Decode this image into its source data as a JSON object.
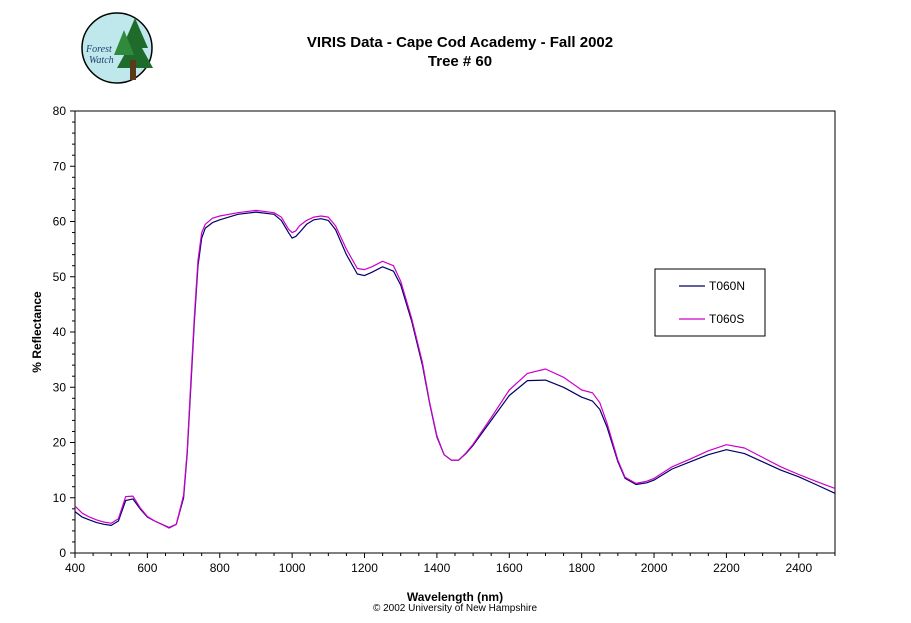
{
  "logo": {
    "line1": "Forest",
    "line2": "Watch"
  },
  "footer": "© 2002 University of New Hampshire",
  "chart_data": {
    "type": "line",
    "title": "VIRIS Data - Cape Cod Academy - Fall 2002",
    "subtitle": "Tree # 60",
    "xlabel": "Wavelength (nm)",
    "ylabel": "% Reflectance",
    "xlim": [
      400,
      2500
    ],
    "ylim": [
      0,
      80
    ],
    "xticks": [
      400,
      600,
      800,
      1000,
      1200,
      1400,
      1600,
      1800,
      2000,
      2200,
      2400
    ],
    "yticks": [
      0,
      10,
      20,
      30,
      40,
      50,
      60,
      70,
      80
    ],
    "grid": false,
    "legend_position": "right",
    "series": [
      {
        "name": "T060N",
        "color": "#000066",
        "x": [
          400,
          420,
          440,
          460,
          480,
          500,
          520,
          540,
          560,
          580,
          600,
          620,
          640,
          660,
          680,
          700,
          710,
          720,
          730,
          740,
          750,
          760,
          780,
          800,
          850,
          900,
          950,
          970,
          990,
          1000,
          1010,
          1020,
          1040,
          1060,
          1080,
          1100,
          1120,
          1150,
          1180,
          1200,
          1220,
          1250,
          1280,
          1300,
          1330,
          1360,
          1380,
          1400,
          1420,
          1440,
          1460,
          1480,
          1500,
          1550,
          1600,
          1650,
          1700,
          1750,
          1800,
          1830,
          1850,
          1870,
          1900,
          1920,
          1950,
          1980,
          2000,
          2050,
          2100,
          2150,
          2200,
          2250,
          2300,
          2350,
          2400,
          2450,
          2500
        ],
        "y": [
          7.5,
          6.5,
          6,
          5.5,
          5.2,
          5,
          5.8,
          9.5,
          9.8,
          8,
          6.5,
          5.8,
          5.2,
          4.6,
          5.2,
          10,
          18,
          30,
          42,
          52,
          57,
          58.8,
          59.8,
          60.3,
          61.3,
          61.7,
          61.3,
          60.2,
          58,
          57,
          57.3,
          58,
          59.5,
          60.3,
          60.5,
          60.2,
          58.5,
          54,
          50.5,
          50.2,
          50.8,
          51.8,
          51,
          48.5,
          42,
          34,
          27,
          21,
          17.8,
          16.8,
          16.8,
          18,
          19.5,
          24,
          28.5,
          31.2,
          31.3,
          30,
          28.2,
          27.5,
          26,
          22.8,
          16.5,
          13.5,
          12.4,
          12.7,
          13.2,
          15.2,
          16.5,
          17.8,
          18.7,
          18,
          16.5,
          15,
          13.8,
          12.3,
          10.8
        ]
      },
      {
        "name": "T060S",
        "color": "#cc00cc",
        "x": [
          400,
          420,
          440,
          460,
          480,
          500,
          520,
          540,
          560,
          580,
          600,
          620,
          640,
          660,
          680,
          700,
          710,
          720,
          730,
          740,
          750,
          760,
          780,
          800,
          850,
          900,
          950,
          970,
          990,
          1000,
          1010,
          1020,
          1040,
          1060,
          1080,
          1100,
          1120,
          1150,
          1180,
          1200,
          1220,
          1250,
          1280,
          1300,
          1330,
          1360,
          1380,
          1400,
          1420,
          1440,
          1460,
          1480,
          1500,
          1550,
          1600,
          1650,
          1700,
          1750,
          1800,
          1830,
          1850,
          1870,
          1900,
          1920,
          1950,
          1980,
          2000,
          2050,
          2100,
          2150,
          2200,
          2250,
          2300,
          2350,
          2400,
          2450,
          2500
        ],
        "y": [
          8.5,
          7.2,
          6.5,
          6,
          5.6,
          5.4,
          6.2,
          10.2,
          10.3,
          8.2,
          6.6,
          5.8,
          5.2,
          4.5,
          5.2,
          10.5,
          18.5,
          31,
          43,
          53,
          58,
          59.5,
          60.6,
          61,
          61.6,
          62,
          61.6,
          60.8,
          58.6,
          58,
          58.3,
          59.2,
          60.2,
          60.8,
          61,
          60.8,
          59.2,
          55,
          51.5,
          51.3,
          51.8,
          52.8,
          52,
          49.2,
          42.5,
          34.5,
          27.2,
          21.2,
          17.8,
          16.8,
          16.8,
          18.1,
          19.7,
          24.5,
          29.5,
          32.5,
          33.3,
          31.8,
          29.5,
          29,
          27.2,
          23.5,
          16.8,
          13.7,
          12.6,
          13,
          13.5,
          15.6,
          17,
          18.5,
          19.6,
          19,
          17.3,
          15.6,
          14.2,
          12.9,
          11.7
        ]
      }
    ]
  }
}
